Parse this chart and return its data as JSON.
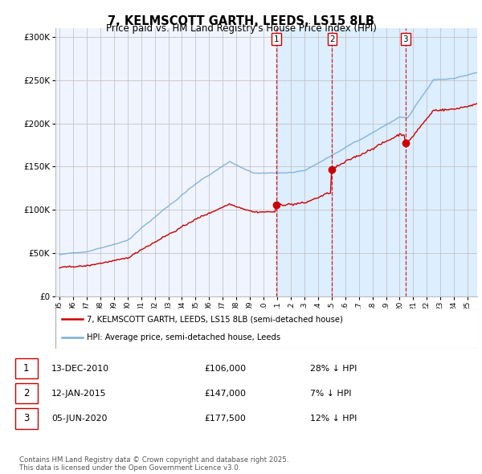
{
  "title": "7, KELMSCOTT GARTH, LEEDS, LS15 8LB",
  "subtitle": "Price paid vs. HM Land Registry's House Price Index (HPI)",
  "ytick_values": [
    0,
    50000,
    100000,
    150000,
    200000,
    250000,
    300000
  ],
  "ytick_labels": [
    "£0",
    "£50K",
    "£100K",
    "£150K",
    "£200K",
    "£250K",
    "£300K"
  ],
  "ylim": [
    0,
    310000
  ],
  "xlim_start": 1994.7,
  "xlim_end": 2025.7,
  "legend_line1": "7, KELMSCOTT GARTH, LEEDS, LS15 8LB (semi-detached house)",
  "legend_line2": "HPI: Average price, semi-detached house, Leeds",
  "sale_labels": [
    "1",
    "2",
    "3"
  ],
  "sale_dates_year": [
    2010.95,
    2015.04,
    2020.43
  ],
  "sale_prices": [
    106000,
    147000,
    177500
  ],
  "sale_texts": [
    "13-DEC-2010",
    "12-JAN-2015",
    "05-JUN-2020"
  ],
  "sale_amounts": [
    "£106,000",
    "£147,000",
    "£177,500"
  ],
  "sale_hpi_diff": [
    "28% ↓ HPI",
    "7% ↓ HPI",
    "12% ↓ HPI"
  ],
  "vline_color": "#cc0000",
  "hpi_color": "#7aaed6",
  "price_color": "#cc0000",
  "shade_color": "#ddeeff",
  "background_color": "#f0f4ff",
  "grid_color": "#bbbbbb",
  "footer": "Contains HM Land Registry data © Crown copyright and database right 2025.\nThis data is licensed under the Open Government Licence v3.0."
}
